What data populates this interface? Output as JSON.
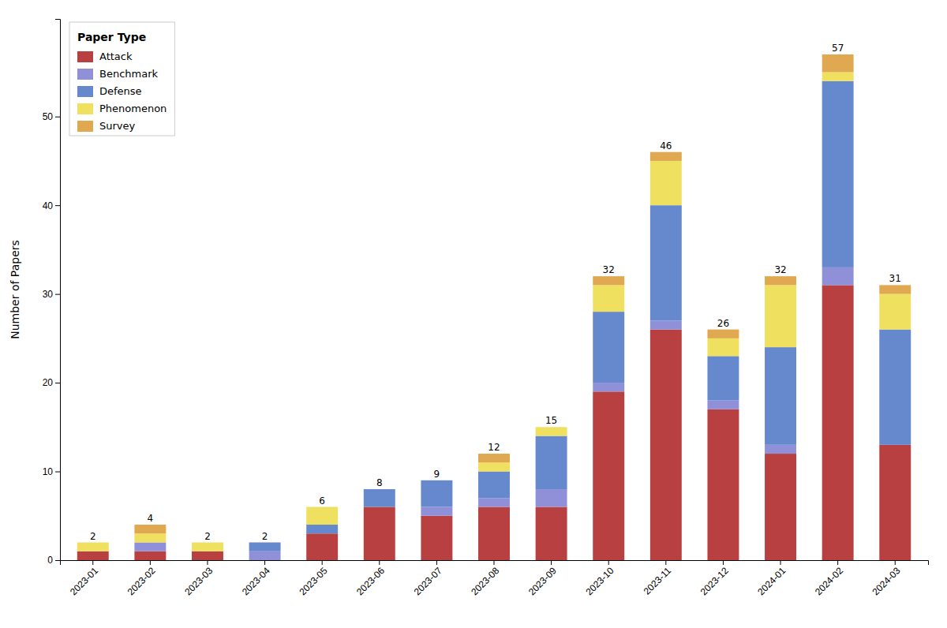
{
  "chart_data": {
    "type": "bar",
    "stacked": true,
    "ylabel": "Number of Papers",
    "legend_title": "Paper Type",
    "legend": "upper left",
    "grid": false,
    "categories": [
      "2023-01",
      "2023-02",
      "2023-03",
      "2023-04",
      "2023-05",
      "2023-06",
      "2023-07",
      "2023-08",
      "2023-09",
      "2023-10",
      "2023-11",
      "2023-12",
      "2024-01",
      "2024-02",
      "2024-03"
    ],
    "series": [
      {
        "name": "Attack",
        "color": "#b94040",
        "values": [
          1,
          1,
          1,
          0,
          3,
          6,
          5,
          6,
          6,
          19,
          26,
          17,
          12,
          31,
          13
        ]
      },
      {
        "name": "Benchmark",
        "color": "#9090d8",
        "values": [
          0,
          1,
          0,
          1,
          0,
          0,
          1,
          1,
          2,
          1,
          1,
          1,
          1,
          2,
          0
        ]
      },
      {
        "name": "Defense",
        "color": "#6688cc",
        "values": [
          0,
          0,
          0,
          1,
          1,
          2,
          3,
          3,
          6,
          8,
          13,
          5,
          11,
          21,
          13
        ]
      },
      {
        "name": "Phenomenon",
        "color": "#f0e060",
        "values": [
          1,
          1,
          1,
          0,
          2,
          0,
          0,
          1,
          1,
          3,
          5,
          2,
          7,
          1,
          4
        ]
      },
      {
        "name": "Survey",
        "color": "#e0a850",
        "values": [
          0,
          1,
          0,
          0,
          0,
          0,
          0,
          1,
          0,
          1,
          1,
          1,
          1,
          2,
          1
        ]
      }
    ],
    "totals": [
      2,
      4,
      2,
      2,
      6,
      8,
      9,
      12,
      15,
      32,
      46,
      26,
      32,
      57,
      31
    ],
    "ylim": [
      0,
      61
    ],
    "yticks": [
      0,
      10,
      20,
      30,
      40,
      50
    ]
  }
}
